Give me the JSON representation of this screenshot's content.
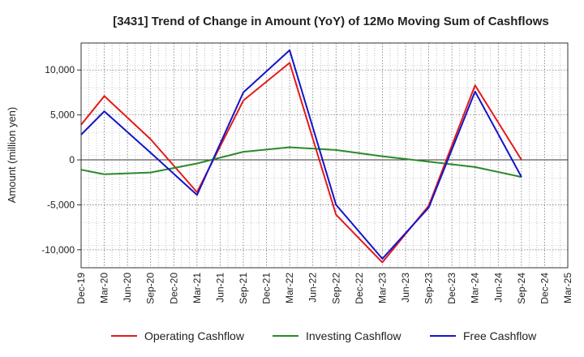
{
  "chart_data": {
    "type": "line",
    "title": "[3431]  Trend of Change in Amount (YoY) of 12Mo Moving Sum of Cashflows",
    "xlabel": "",
    "ylabel": "Amount (million yen)",
    "ylim": [
      -12000,
      13000
    ],
    "yticks": [
      10000,
      5000,
      0,
      -5000,
      -10000
    ],
    "ytick_labels": [
      "10,000",
      "5,000",
      "0",
      "-5,000",
      "-10,000"
    ],
    "categories": [
      "Dec-19",
      "Mar-20",
      "Jun-20",
      "Sep-20",
      "Dec-20",
      "Mar-21",
      "Jun-21",
      "Sep-21",
      "Dec-21",
      "Mar-22",
      "Jun-22",
      "Sep-22",
      "Dec-22",
      "Mar-23",
      "Jun-23",
      "Sep-23",
      "Dec-23",
      "Mar-24",
      "Jun-24",
      "Sep-24",
      "Dec-24",
      "Mar-25"
    ],
    "grid": true,
    "legend_position": "bottom",
    "series": [
      {
        "name": "Operating Cashflow",
        "color": "#e41a1c",
        "values": [
          3900,
          7100,
          null,
          2300,
          null,
          -3600,
          null,
          6600,
          null,
          10800,
          null,
          -6100,
          null,
          -11400,
          null,
          -5100,
          null,
          8300,
          null,
          0,
          null,
          null
        ]
      },
      {
        "name": "Investing Cashflow",
        "color": "#2a8a2a",
        "values": [
          -1100,
          -1600,
          null,
          -1400,
          null,
          -400,
          null,
          900,
          null,
          1400,
          null,
          1100,
          null,
          400,
          null,
          -200,
          null,
          -800,
          null,
          -1900,
          null,
          null
        ]
      },
      {
        "name": "Free Cashflow",
        "color": "#1515c8",
        "values": [
          2800,
          5400,
          null,
          800,
          null,
          -3900,
          null,
          7500,
          null,
          12200,
          null,
          -5000,
          null,
          -11000,
          null,
          -5300,
          null,
          7600,
          null,
          -1900,
          null,
          null
        ]
      }
    ]
  }
}
